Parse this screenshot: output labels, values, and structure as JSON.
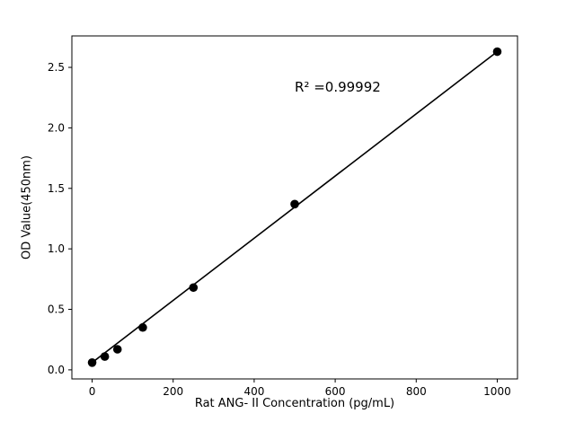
{
  "chart_data": {
    "type": "scatter",
    "title": "",
    "xlabel": "Rat ANG- II Concentration (pg/mL)",
    "ylabel": "OD Value(450nm)",
    "annotation": "R² =0.99992",
    "x": [
      0,
      31.25,
      62.5,
      125,
      250,
      500,
      1000
    ],
    "y": [
      0.06,
      0.11,
      0.17,
      0.35,
      0.68,
      1.37,
      2.63
    ],
    "fit_line": {
      "x1": 0,
      "y1": 0.06,
      "x2": 1000,
      "y2": 2.63
    },
    "xlim": [
      -50,
      1050
    ],
    "ylim": [
      -0.075,
      2.76
    ],
    "xticks": [
      0,
      200,
      400,
      600,
      800,
      1000
    ],
    "xtick_labels": [
      "0",
      "200",
      "400",
      "600",
      "800",
      "1000"
    ],
    "yticks": [
      0.0,
      0.5,
      1.0,
      1.5,
      2.0,
      2.5
    ],
    "ytick_labels": [
      "0.0",
      "0.5",
      "1.0",
      "1.5",
      "2.0",
      "2.5"
    ],
    "grid": false,
    "legend": "none",
    "marker_color": "#000000",
    "line_color": "#000000",
    "background_color": "#ffffff"
  }
}
